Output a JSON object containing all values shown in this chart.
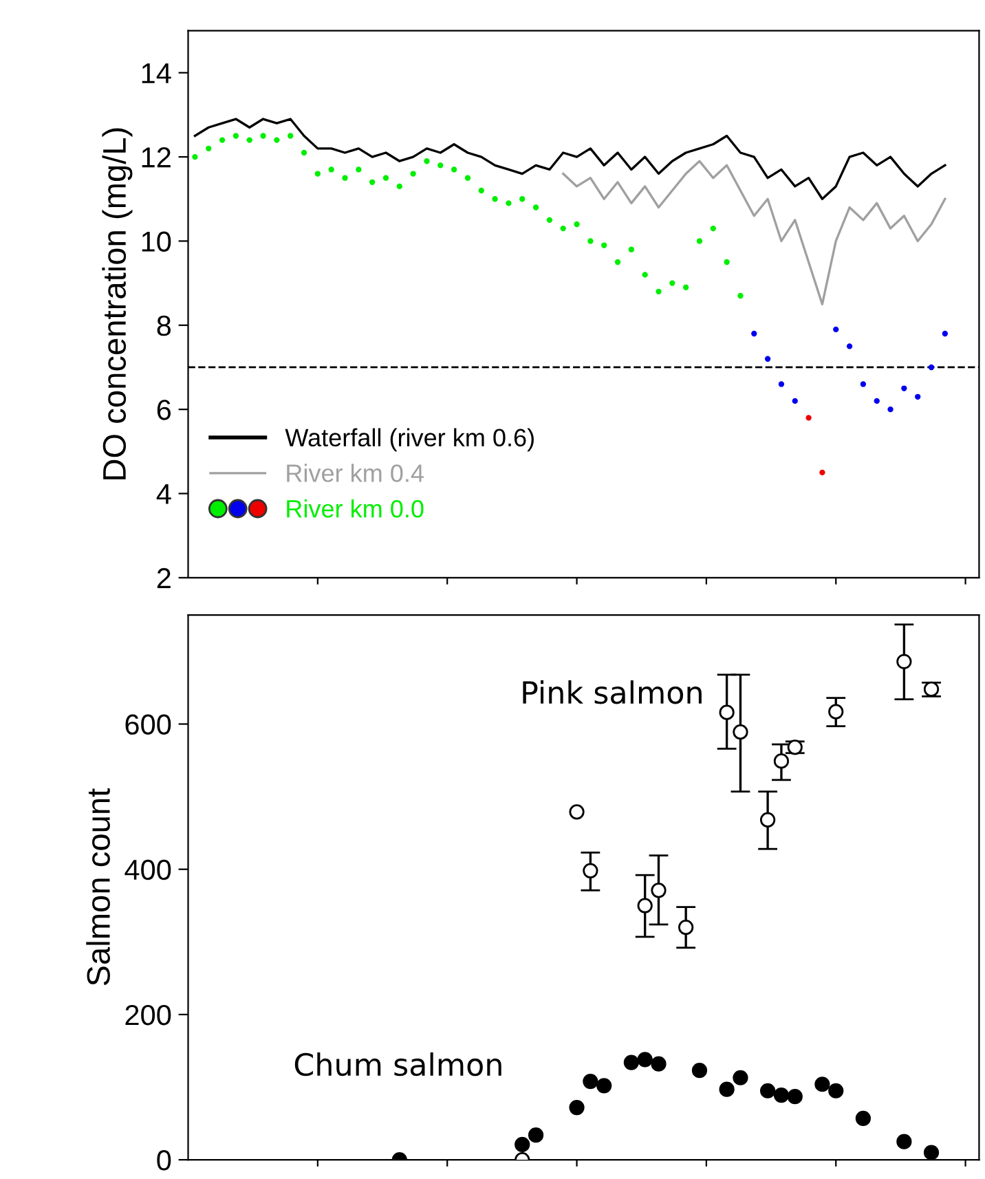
{
  "chart_data": [
    {
      "type": "line",
      "ylabel": "DO concentration (mg/L)",
      "categories": [
        null,
        null,
        null,
        null,
        null,
        null,
        null,
        null,
        null,
        null,
        null,
        null,
        null,
        null,
        null,
        null,
        null,
        null,
        null,
        null,
        null,
        null,
        null,
        null,
        null,
        null,
        null,
        null,
        null,
        null,
        null,
        null,
        null,
        null,
        null,
        null,
        null,
        null,
        null,
        null,
        null,
        null,
        null,
        null,
        null,
        null,
        null,
        null,
        null,
        null,
        null,
        null,
        null,
        null,
        null,
        null,
        null,
        null
      ],
      "ylim": [
        2,
        15
      ],
      "yticks": [
        2,
        4,
        6,
        8,
        10,
        12,
        14
      ],
      "tick_labels": "y",
      "legend": "bottom left",
      "grid": false,
      "ref_lines": [
        {
          "axis": "y",
          "value": 7,
          "color": "#000000",
          "line_style": "dashed"
        }
      ],
      "series": [
        {
          "name": "Waterfall (river km 0.6)",
          "type": "line",
          "color": "#000000",
          "values": [
            12.5,
            12.7,
            12.8,
            12.9,
            12.7,
            12.9,
            12.8,
            12.9,
            12.5,
            12.2,
            12.2,
            12.1,
            12.2,
            12.0,
            12.1,
            11.9,
            12.0,
            12.2,
            12.1,
            12.3,
            12.1,
            12.0,
            11.8,
            11.7,
            11.6,
            11.8,
            11.7,
            12.1,
            12.0,
            12.2,
            11.8,
            12.1,
            11.7,
            12.0,
            11.6,
            11.9,
            12.1,
            12.2,
            12.3,
            12.5,
            12.1,
            12.0,
            11.5,
            11.7,
            11.3,
            11.5,
            11.0,
            11.3,
            12.0,
            12.1,
            11.8,
            12.0,
            11.6,
            11.3,
            11.6,
            11.8,
            null,
            null
          ]
        },
        {
          "name": "River km 0.4",
          "type": "line",
          "color": "#a0a0a0",
          "values": [
            null,
            null,
            null,
            null,
            null,
            null,
            null,
            null,
            null,
            null,
            null,
            null,
            null,
            null,
            null,
            null,
            null,
            null,
            null,
            null,
            null,
            null,
            null,
            null,
            null,
            null,
            null,
            11.6,
            11.3,
            11.5,
            11.0,
            11.4,
            10.9,
            11.3,
            10.8,
            11.2,
            11.6,
            11.9,
            11.5,
            11.8,
            11.2,
            10.6,
            11.0,
            10.0,
            10.5,
            9.5,
            8.5,
            10.0,
            10.8,
            10.5,
            10.9,
            10.3,
            10.6,
            10.0,
            10.4,
            11.0,
            null,
            null
          ]
        },
        {
          "name": "River km 0.0",
          "type": "scatter",
          "color": "#00ee00",
          "values": [
            12.0,
            12.2,
            12.4,
            12.5,
            12.4,
            12.5,
            12.4,
            12.5,
            12.1,
            11.6,
            11.7,
            11.5,
            11.7,
            11.4,
            11.5,
            11.3,
            11.6,
            11.9,
            11.8,
            11.7,
            11.5,
            11.2,
            11.0,
            10.9,
            11.0,
            10.8,
            10.5,
            10.3,
            10.4,
            10.0,
            9.9,
            9.5,
            9.8,
            9.2,
            8.8,
            9.0,
            8.9,
            10.0,
            10.3,
            9.5,
            8.7,
            7.8,
            7.2,
            6.6,
            6.2,
            5.8,
            4.5,
            7.9,
            7.5,
            6.6,
            6.2,
            6.0,
            6.5,
            6.3,
            7.0,
            7.8,
            null,
            null
          ],
          "colors": [
            "#00ee00",
            "#00ee00",
            "#00ee00",
            "#00ee00",
            "#00ee00",
            "#00ee00",
            "#00ee00",
            "#00ee00",
            "#00ee00",
            "#00ee00",
            "#00ee00",
            "#00ee00",
            "#00ee00",
            "#00ee00",
            "#00ee00",
            "#00ee00",
            "#00ee00",
            "#00ee00",
            "#00ee00",
            "#00ee00",
            "#00ee00",
            "#00ee00",
            "#00ee00",
            "#00ee00",
            "#00ee00",
            "#00ee00",
            "#00ee00",
            "#00ee00",
            "#00ee00",
            "#00ee00",
            "#00ee00",
            "#00ee00",
            "#00ee00",
            "#00ee00",
            "#00ee00",
            "#00ee00",
            "#00ee00",
            "#00ee00",
            "#00ee00",
            "#00ee00",
            "#00ee00",
            "#0000ee",
            "#0000ee",
            "#0000ee",
            "#0000ee",
            "#ee0000",
            "#ee0000",
            "#0000ee",
            "#0000ee",
            "#0000ee",
            "#0000ee",
            "#0000ee",
            "#0000ee",
            "#0000ee",
            "#0000ee",
            "#0000ee",
            null,
            null
          ]
        }
      ]
    },
    {
      "type": "scatter",
      "ylabel": "Salmon count",
      "categories": [
        null,
        null,
        null,
        null,
        null,
        null,
        null,
        null,
        null,
        null,
        null,
        null,
        null,
        null,
        null,
        null,
        null,
        null,
        null,
        null,
        null,
        null,
        null,
        null,
        null,
        null,
        null,
        null,
        null,
        null,
        null,
        null,
        null,
        null,
        null,
        null,
        null,
        null,
        null,
        null,
        null,
        null,
        null,
        null,
        null,
        null,
        null,
        null,
        null,
        null,
        null,
        null,
        null,
        null,
        null,
        null,
        null,
        null
      ],
      "ylim": [
        0,
        750
      ],
      "yticks": [
        0,
        200,
        400,
        600
      ],
      "tick_labels": "y",
      "marker": "circle",
      "grid": false,
      "series": [
        {
          "name": "Pink salmon",
          "color": "#ffffff",
          "values": [
            null,
            null,
            null,
            null,
            null,
            null,
            null,
            null,
            null,
            null,
            null,
            null,
            null,
            null,
            null,
            null,
            null,
            null,
            null,
            null,
            null,
            null,
            null,
            null,
            0,
            null,
            null,
            null,
            479,
            398,
            null,
            null,
            null,
            350,
            371,
            null,
            320,
            null,
            null,
            616,
            589,
            null,
            468,
            549,
            568,
            null,
            null,
            617,
            null,
            null,
            null,
            null,
            686,
            null,
            648,
            null,
            null,
            null
          ],
          "errors": [
            null,
            null,
            null,
            null,
            null,
            null,
            null,
            null,
            null,
            null,
            null,
            null,
            null,
            null,
            null,
            null,
            null,
            null,
            null,
            null,
            null,
            null,
            null,
            null,
            null,
            null,
            null,
            null,
            null,
            [
              371,
              423
            ],
            null,
            null,
            null,
            [
              307,
              392
            ],
            [
              324,
              419
            ],
            null,
            [
              292,
              348
            ],
            null,
            null,
            [
              566,
              668
            ],
            [
              507,
              668
            ],
            null,
            [
              428,
              507
            ],
            [
              523,
              572
            ],
            [
              560,
              576
            ],
            null,
            null,
            [
              597,
              636
            ],
            null,
            null,
            null,
            null,
            [
              634,
              737
            ],
            null,
            [
              638,
              657
            ],
            null,
            null,
            null
          ]
        },
        {
          "name": "Chum salmon",
          "color": "#000000",
          "values": [
            null,
            null,
            null,
            null,
            null,
            null,
            null,
            null,
            null,
            null,
            null,
            null,
            null,
            null,
            null,
            0,
            null,
            null,
            null,
            null,
            null,
            null,
            null,
            null,
            21,
            34,
            null,
            null,
            72,
            108,
            102,
            null,
            134,
            138,
            132,
            null,
            null,
            123,
            null,
            97,
            113,
            null,
            95,
            89,
            87,
            null,
            104,
            95,
            null,
            57,
            null,
            null,
            25,
            null,
            10,
            null,
            null,
            null
          ]
        }
      ]
    }
  ]
}
